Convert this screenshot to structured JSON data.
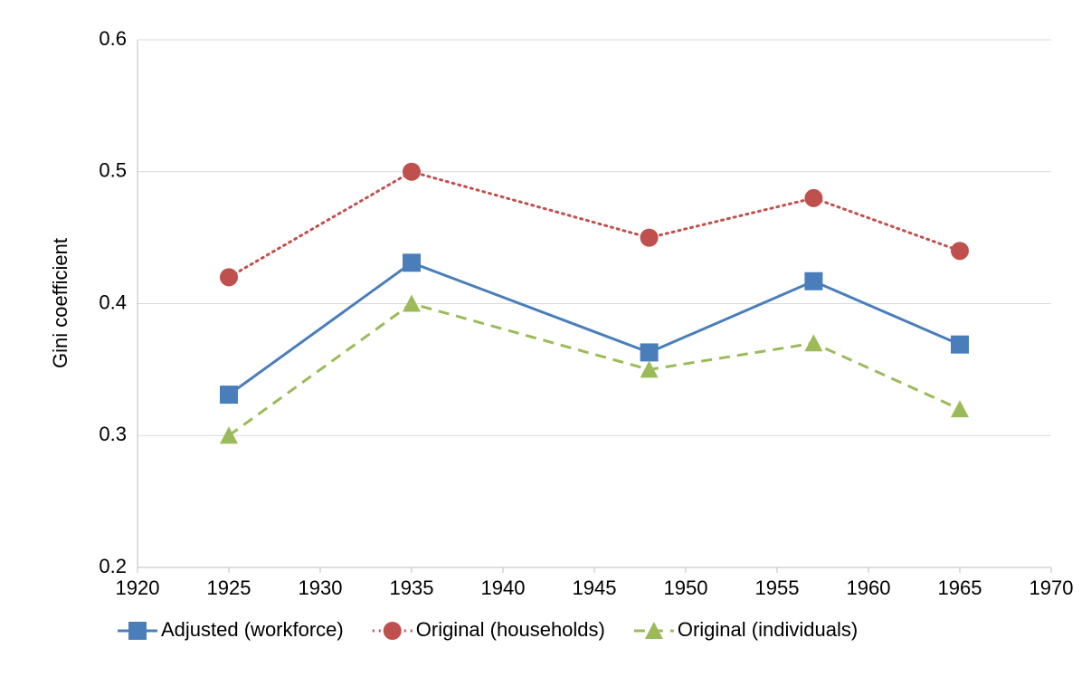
{
  "chart_data": {
    "type": "line",
    "y_label": "Gini coefficient",
    "x": [
      1925,
      1935,
      1948,
      1957,
      1965
    ],
    "series": [
      {
        "name": "Adjusted (workforce)",
        "color": "#4a7ebb",
        "dash": "solid",
        "marker": "square",
        "values": [
          0.331,
          0.431,
          0.363,
          0.417,
          0.369
        ]
      },
      {
        "name": "Original (households)",
        "color": "#c0504d",
        "dash": "dotted",
        "marker": "circle",
        "values": [
          0.42,
          0.5,
          0.45,
          0.48,
          0.44
        ]
      },
      {
        "name": "Original (individuals)",
        "color": "#9bbb59",
        "dash": "dashed",
        "marker": "triangle",
        "values": [
          0.3,
          0.4,
          0.35,
          0.37,
          0.32
        ]
      }
    ],
    "xlim": [
      1920,
      1970
    ],
    "xticks": [
      1920,
      1925,
      1930,
      1935,
      1940,
      1945,
      1950,
      1955,
      1960,
      1965,
      1970
    ],
    "ylim": [
      0.2,
      0.6
    ],
    "yticks": [
      0.2,
      0.3,
      0.4,
      0.5,
      0.6
    ],
    "grid": true,
    "legend": "bottom"
  }
}
